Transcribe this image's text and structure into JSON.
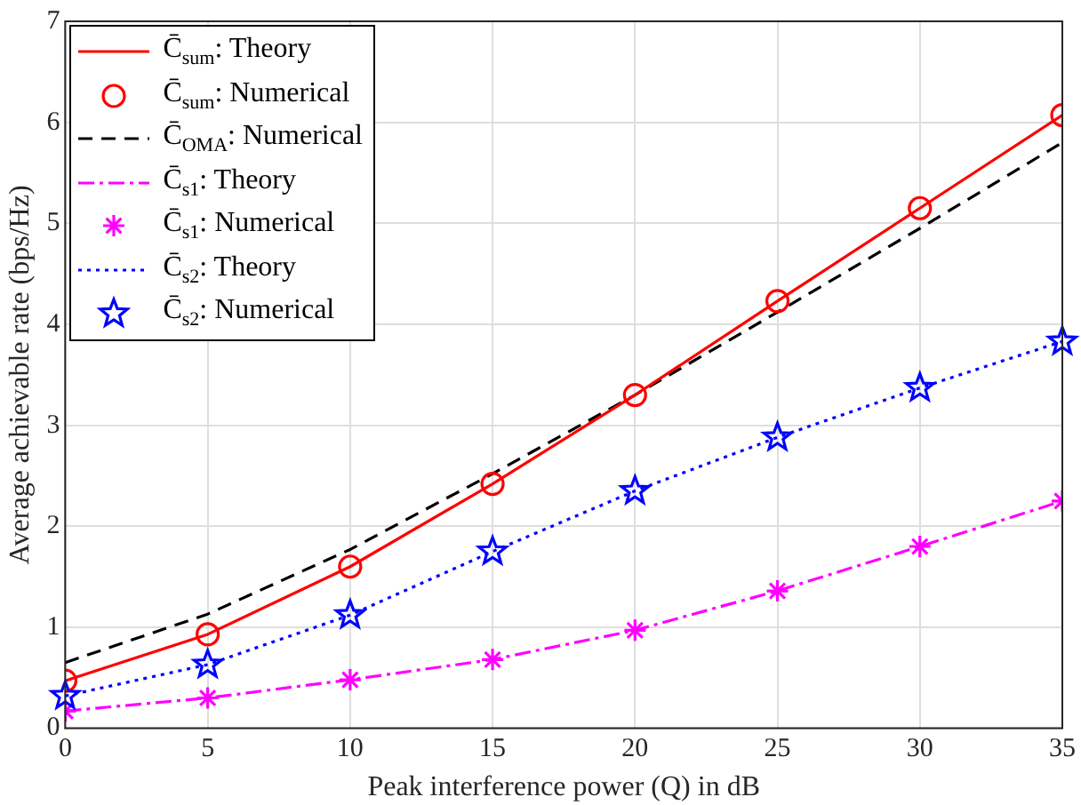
{
  "chart_data": {
    "type": "line",
    "xlabel": "Peak interference power (Q) in dB",
    "ylabel": "Average achievable rate (bps/Hz)",
    "x": [
      0,
      5,
      10,
      15,
      20,
      25,
      30,
      35
    ],
    "series": [
      {
        "name": "C̄$_{sum}$: Theory",
        "color": "#ff0000",
        "line_style": "solid",
        "marker": "none",
        "values": [
          0.47,
          0.93,
          1.6,
          2.42,
          3.3,
          4.23,
          5.15,
          6.07
        ]
      },
      {
        "name": "C̄$_{sum}$: Numerical",
        "type": "scatter",
        "color": "#ff0000",
        "marker": "circle",
        "values": [
          0.47,
          0.93,
          1.6,
          2.42,
          3.3,
          4.23,
          5.15,
          6.07
        ]
      },
      {
        "name": "C̄$_{OMA}$: Numerical",
        "color": "#000000",
        "line_style": "dashed",
        "marker": "none",
        "values": [
          0.65,
          1.13,
          1.77,
          2.52,
          3.3,
          4.12,
          4.95,
          5.8
        ]
      },
      {
        "name": "C̄$_{s1}$: Theory",
        "color": "#ff00ff",
        "line_style": "dashdot",
        "marker": "none",
        "values": [
          0.17,
          0.3,
          0.48,
          0.68,
          0.97,
          1.36,
          1.8,
          2.25
        ]
      },
      {
        "name": "C̄$_{s1}$: Numerical",
        "type": "scatter",
        "color": "#ff00ff",
        "marker": "cross",
        "values": [
          0.17,
          0.3,
          0.48,
          0.68,
          0.97,
          1.36,
          1.8,
          2.25
        ]
      },
      {
        "name": "C̄$_{s2}$: Theory",
        "color": "#0000ff",
        "line_style": "dotted",
        "marker": "none",
        "values": [
          0.32,
          0.63,
          1.12,
          1.75,
          2.35,
          2.88,
          3.37,
          3.83
        ]
      },
      {
        "name": "C̄$_{s2}$: Numerical",
        "type": "scatter",
        "color": "#0000ff",
        "marker": "star",
        "values": [
          0.32,
          0.63,
          1.12,
          1.75,
          2.35,
          2.88,
          3.37,
          3.83
        ]
      }
    ],
    "xlim": [
      0,
      35
    ],
    "xticks": [
      0,
      5,
      10,
      15,
      20,
      25,
      30,
      35
    ],
    "ylim": [
      0,
      7
    ],
    "yticks": [
      0,
      1,
      2,
      3,
      4,
      5,
      6,
      7
    ],
    "grid": true,
    "legend": "top left"
  }
}
